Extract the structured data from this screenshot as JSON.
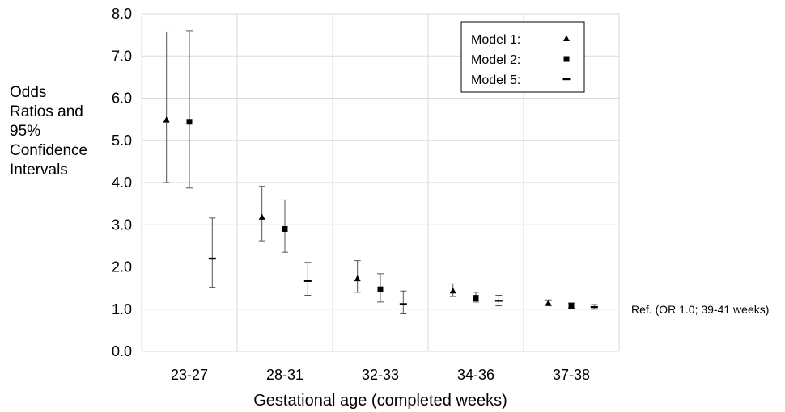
{
  "chart_data": {
    "type": "scatter",
    "subtype": "error-bar",
    "title": "",
    "ylabel_lines": [
      "Odds",
      "Ratios and",
      "95%",
      "Confidence",
      "Intervals"
    ],
    "xlabel": "Gestational age (completed weeks)",
    "categories": [
      "23-27",
      "28-31",
      "32-33",
      "34-36",
      "37-38"
    ],
    "ylim": [
      0,
      8
    ],
    "yticks": [
      "0.0",
      "1.0",
      "2.0",
      "3.0",
      "4.0",
      "5.0",
      "6.0",
      "7.0",
      "8.0"
    ],
    "grid": true,
    "legend": {
      "placement": "top-right",
      "entries": [
        "Model 1:",
        "Model 2:",
        "Model 5:"
      ]
    },
    "reference_label": "Ref. (OR 1.0; 39-41 weeks)",
    "series": [
      {
        "name": "Model 1:",
        "marker": "triangle",
        "or": [
          5.48,
          3.18,
          1.72,
          1.43,
          1.14
        ],
        "lower": [
          4.0,
          2.62,
          1.4,
          1.3,
          1.08
        ],
        "upper": [
          7.57,
          3.91,
          2.15,
          1.6,
          1.22
        ]
      },
      {
        "name": "Model 2:",
        "marker": "square",
        "or": [
          5.44,
          2.9,
          1.47,
          1.27,
          1.08
        ],
        "lower": [
          3.87,
          2.35,
          1.17,
          1.17,
          1.03
        ],
        "upper": [
          7.6,
          3.59,
          1.84,
          1.4,
          1.15
        ]
      },
      {
        "name": "Model 5:",
        "marker": "dash",
        "or": [
          2.2,
          1.67,
          1.12,
          1.2,
          1.05
        ],
        "lower": [
          1.52,
          1.33,
          0.89,
          1.08,
          1.0
        ],
        "upper": [
          3.16,
          2.11,
          1.43,
          1.33,
          1.11
        ]
      }
    ]
  }
}
